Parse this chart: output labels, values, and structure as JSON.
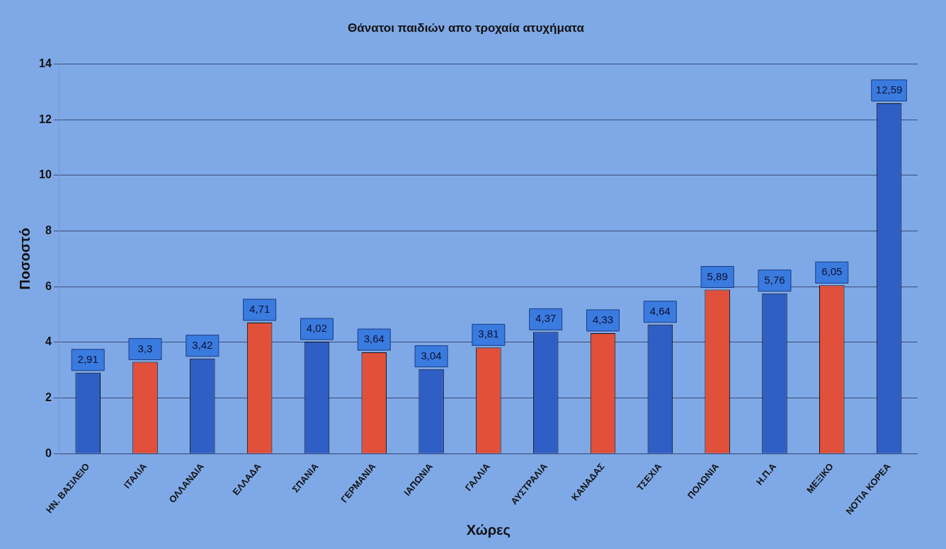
{
  "chart_data": {
    "type": "bar",
    "title": "Θάνατοι παιδιών απο τροχαία ατυχήματα",
    "xlabel": "Χώρες",
    "ylabel": "Ποσοστό",
    "categories": [
      "ΗΝ. ΒΑΣΙΛΕΙΟ",
      "ΙΤΑΛΙΑ",
      "ΟΛΛΑΝΔΙΑ",
      "ΕΛΛΑΔΑ",
      "ΣΠΑΝΙΑ",
      "ΓΕΡΜΑΝΙΑ",
      "ΙΑΠΩΝΙΑ",
      "ΓΑΛΛΙΑ",
      "ΑΥΣΤΡΑΛΙΑ",
      "ΚΑΝΑΔΑΣ",
      "ΤΣΕΧΙΑ",
      "ΠΟΛΩΝΙΑ",
      "Η.Π.Α",
      "ΜΕΞΙΚΟ",
      "ΝΟΤΙΑ ΚΟΡΕΑ"
    ],
    "values": [
      2.91,
      3.3,
      3.42,
      4.71,
      4.02,
      3.64,
      3.04,
      3.81,
      4.37,
      4.33,
      4.64,
      5.89,
      5.76,
      6.05,
      12.59
    ],
    "value_labels": [
      "2,91",
      "3,3",
      "3,42",
      "4,71",
      "4,02",
      "3,64",
      "3,04",
      "3,81",
      "4,37",
      "4,33",
      "4,64",
      "5,89",
      "5,76",
      "6,05",
      "12,59"
    ],
    "colors": [
      "#2f5fc4",
      "#e0503a",
      "#2f5fc4",
      "#e0503a",
      "#2f5fc4",
      "#e0503a",
      "#2f5fc4",
      "#e0503a",
      "#2f5fc4",
      "#e0503a",
      "#2f5fc4",
      "#e0503a",
      "#2f5fc4",
      "#e0503a",
      "#2f5fc4"
    ],
    "ylim": [
      0,
      14
    ],
    "yticks": [
      0,
      2,
      4,
      6,
      8,
      10,
      12,
      14
    ],
    "grid": "y",
    "legend": false
  }
}
